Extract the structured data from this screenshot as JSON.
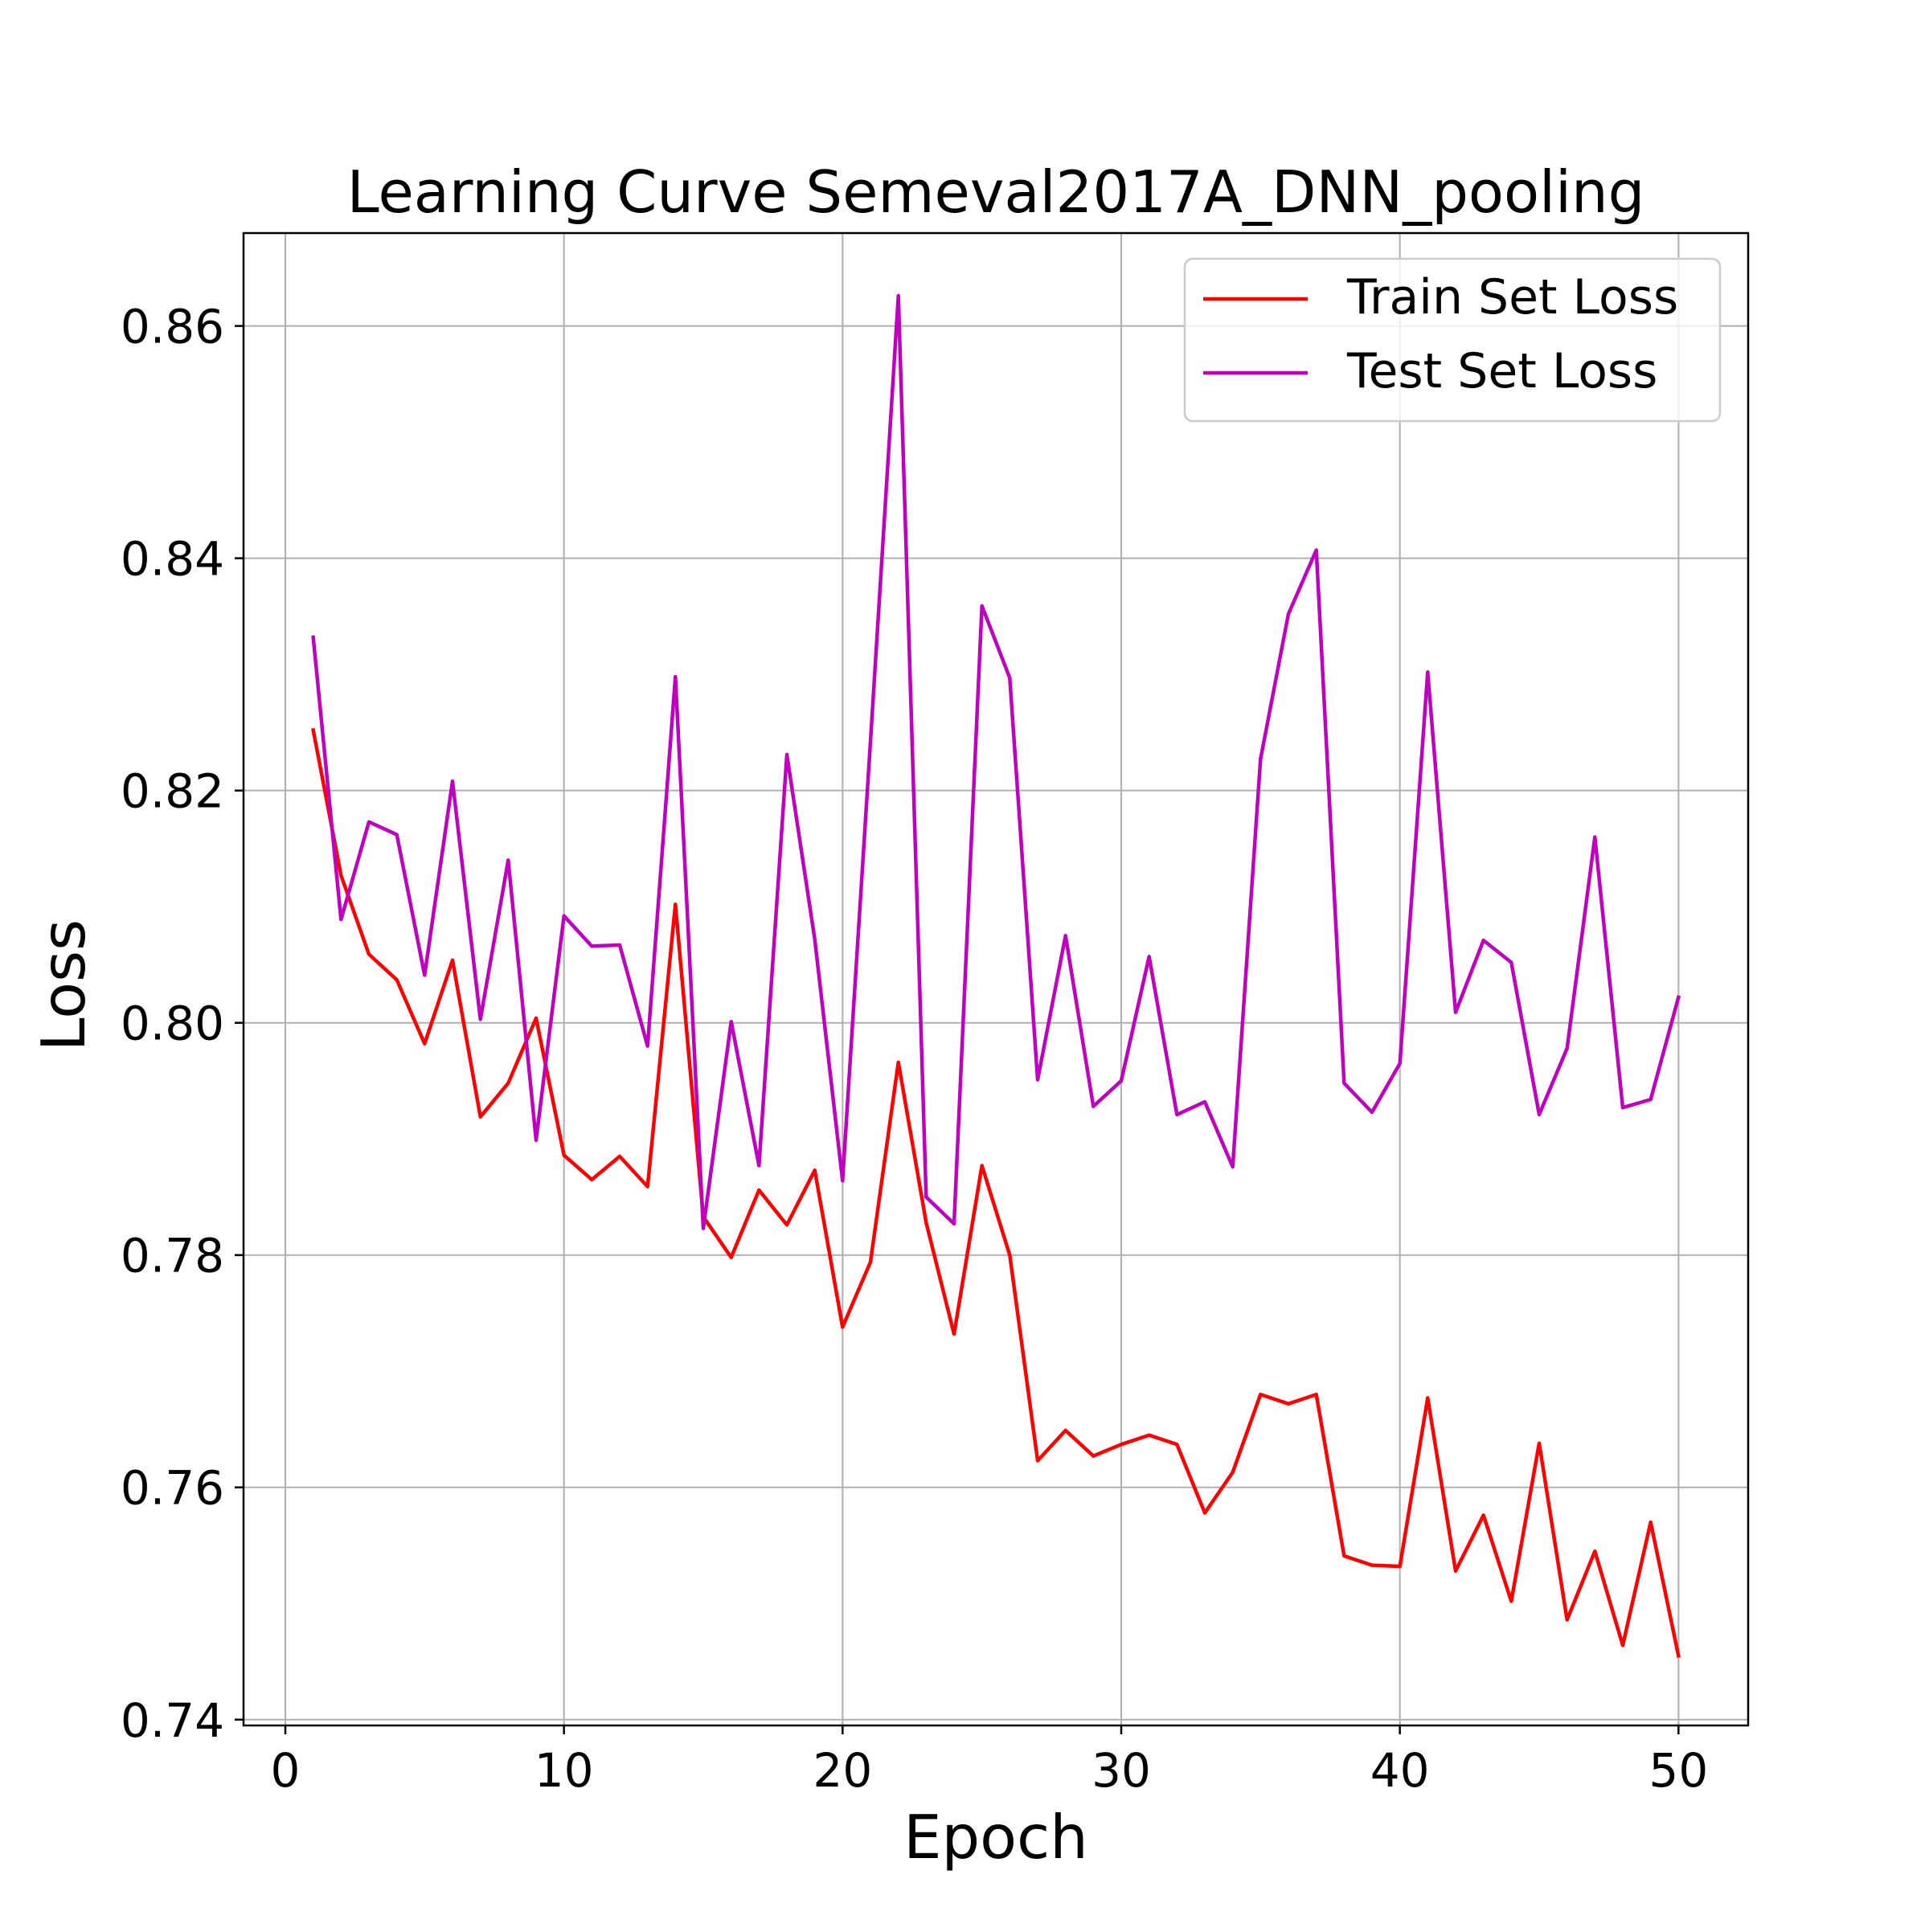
{
  "chart_data": {
    "type": "line",
    "title": "Learning Curve Semeval2017A_DNN_pooling",
    "xlabel": "Epoch",
    "ylabel": "Loss",
    "xlim": [
      -1.5,
      52.5
    ],
    "ylim": [
      0.7395,
      0.868
    ],
    "xticks": [
      0,
      10,
      20,
      30,
      40,
      50
    ],
    "yticks": [
      0.74,
      0.76,
      0.78,
      0.8,
      0.82,
      0.84,
      0.86
    ],
    "xtick_labels": [
      "0",
      "10",
      "20",
      "30",
      "40",
      "50"
    ],
    "ytick_labels": [
      "0.74",
      "0.76",
      "0.78",
      "0.80",
      "0.82",
      "0.84",
      "0.86"
    ],
    "grid": true,
    "legend": "top-right",
    "x": [
      1,
      2,
      3,
      4,
      5,
      6,
      7,
      8,
      9,
      10,
      11,
      12,
      13,
      14,
      15,
      16,
      17,
      18,
      19,
      20,
      21,
      22,
      23,
      24,
      25,
      26,
      27,
      28,
      29,
      30,
      31,
      32,
      33,
      34,
      35,
      36,
      37,
      38,
      39,
      40,
      41,
      42,
      43,
      44,
      45,
      46,
      47,
      48,
      49,
      50
    ],
    "series": [
      {
        "name": "Train Set Loss",
        "color": "#ff0000",
        "values": [
          0.8252,
          0.8127,
          0.8059,
          0.8037,
          0.7982,
          0.8054,
          0.7919,
          0.7948,
          0.8004,
          0.7886,
          0.7865,
          0.7885,
          0.7859,
          0.8102,
          0.7833,
          0.7798,
          0.7856,
          0.7826,
          0.7873,
          0.7738,
          0.7794,
          0.7966,
          0.7828,
          0.7732,
          0.7877,
          0.78,
          0.7623,
          0.7649,
          0.7627,
          0.7637,
          0.7645,
          0.7637,
          0.7578,
          0.7613,
          0.768,
          0.7672,
          0.768,
          0.7541,
          0.7533,
          0.7532,
          0.7677,
          0.7528,
          0.7576,
          0.7502,
          0.7638,
          0.7486,
          0.7545,
          0.7464,
          0.757,
          0.7455
        ]
      },
      {
        "name": "Test Set Loss",
        "color": "#bf00bf",
        "values": [
          0.8332,
          0.8089,
          0.8173,
          0.8162,
          0.8041,
          0.8208,
          0.8003,
          0.814,
          0.7899,
          0.8092,
          0.8066,
          0.8067,
          0.798,
          0.8298,
          0.7823,
          0.8001,
          0.7877,
          0.8231,
          0.8072,
          0.7864,
          0.8242,
          0.8626,
          0.785,
          0.7827,
          0.8359,
          0.8297,
          0.7951,
          0.8075,
          0.7928,
          0.795,
          0.8057,
          0.7921,
          0.7932,
          0.7876,
          0.8227,
          0.8352,
          0.8407,
          0.7948,
          0.7923,
          0.7965,
          0.8302,
          0.8009,
          0.8071,
          0.8052,
          0.7921,
          0.7978,
          0.816,
          0.7927,
          0.7934,
          0.8022
        ]
      }
    ]
  }
}
